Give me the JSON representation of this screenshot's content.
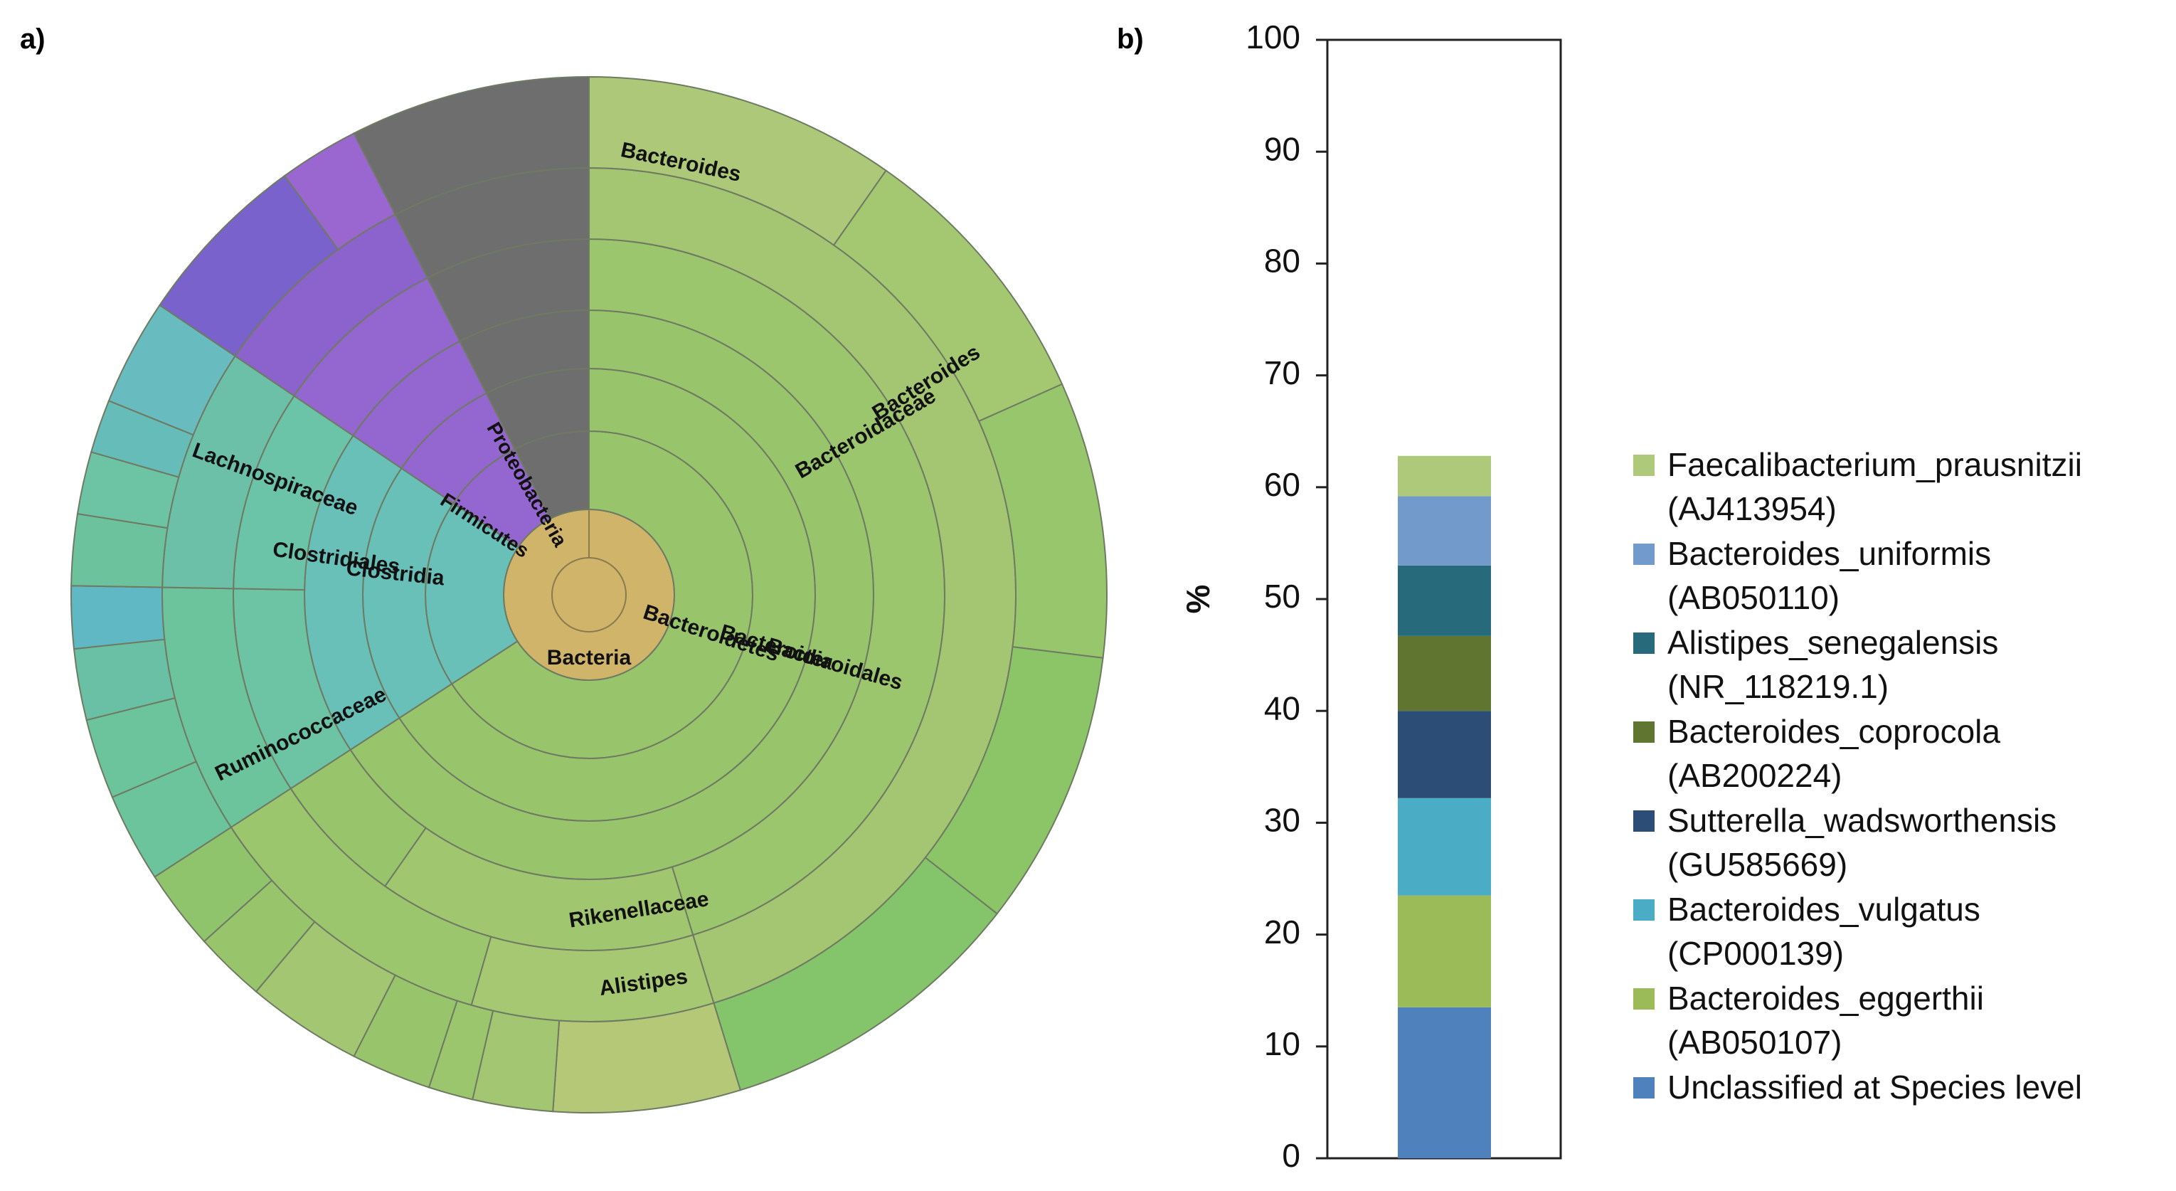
{
  "panel_labels": {
    "a": "a)",
    "b": "b)"
  },
  "chart_data": [
    {
      "type": "sunburst",
      "panel": "a)",
      "start_angle_deg": 0,
      "rings": [
        "domain",
        "phylum",
        "class",
        "order",
        "family",
        "genus",
        "species"
      ],
      "segments": [
        {
          "ring": 1,
          "start": 0,
          "end": 360,
          "color": "#cfb46a",
          "label": "Bacteria"
        },
        {
          "ring": 2,
          "start": 0,
          "end": 237,
          "color": "#98c46c",
          "label": "Bacteroidetes"
        },
        {
          "ring": 2,
          "start": 237,
          "end": 304,
          "color": "#68c0b8",
          "label": "Firmicutes"
        },
        {
          "ring": 2,
          "start": 304,
          "end": 333,
          "color": "#9466d0",
          "label": "Proteobacteria"
        },
        {
          "ring": 2,
          "start": 333,
          "end": 360,
          "color": "#6e6e6e",
          "label": ""
        },
        {
          "ring": 3,
          "start": 0,
          "end": 237,
          "color": "#98c46c",
          "label": "Bacteroidia"
        },
        {
          "ring": 3,
          "start": 237,
          "end": 304,
          "color": "#68c0b8",
          "label": "Clostridia"
        },
        {
          "ring": 3,
          "start": 304,
          "end": 333,
          "color": "#9466d0",
          "label": ""
        },
        {
          "ring": 3,
          "start": 333,
          "end": 360,
          "color": "#6e6e6e",
          "label": ""
        },
        {
          "ring": 4,
          "start": 0,
          "end": 237,
          "color": "#98c46c",
          "label": "Bacteroidales"
        },
        {
          "ring": 4,
          "start": 237,
          "end": 304,
          "color": "#68c0b8",
          "label": "Clostridiales"
        },
        {
          "ring": 4,
          "start": 304,
          "end": 333,
          "color": "#9466d0",
          "label": ""
        },
        {
          "ring": 4,
          "start": 333,
          "end": 360,
          "color": "#6e6e6e",
          "label": ""
        },
        {
          "ring": 5,
          "start": 0,
          "end": 163,
          "color": "#9cc66e",
          "label": "Bacteroidaceae"
        },
        {
          "ring": 5,
          "start": 163,
          "end": 215,
          "color": "#a0c670",
          "label": "Rikenellaceae"
        },
        {
          "ring": 5,
          "start": 215,
          "end": 237,
          "color": "#98c46c",
          "label": ""
        },
        {
          "ring": 5,
          "start": 237,
          "end": 271,
          "color": "#6cc4a4",
          "label": "Ruminococcaceae"
        },
        {
          "ring": 5,
          "start": 271,
          "end": 304,
          "color": "#6cc4a8",
          "label": "Lachnospiraceae"
        },
        {
          "ring": 5,
          "start": 304,
          "end": 333,
          "color": "#9466d0",
          "label": ""
        },
        {
          "ring": 5,
          "start": 333,
          "end": 360,
          "color": "#6e6e6e",
          "label": ""
        },
        {
          "ring": 6,
          "start": 0,
          "end": 163,
          "color": "#a4c672",
          "label": "Bacteroides"
        },
        {
          "ring": 6,
          "start": 163,
          "end": 196,
          "color": "#a6c872",
          "label": "Alistipes"
        },
        {
          "ring": 6,
          "start": 196,
          "end": 237,
          "color": "#9cc66e",
          "label": ""
        },
        {
          "ring": 6,
          "start": 237,
          "end": 271,
          "color": "#6cc49c",
          "label": ""
        },
        {
          "ring": 6,
          "start": 271,
          "end": 304,
          "color": "#6cc0a8",
          "label": ""
        },
        {
          "ring": 6,
          "start": 304,
          "end": 333,
          "color": "#8c62cc",
          "label": ""
        },
        {
          "ring": 6,
          "start": 333,
          "end": 360,
          "color": "#6e6e6e",
          "label": ""
        },
        {
          "ring": 7,
          "start": 0,
          "end": 35,
          "color": "#acc878",
          "label": "Bacteroides"
        },
        {
          "ring": 7,
          "start": 35,
          "end": 66,
          "color": "#a4c872",
          "label": ""
        },
        {
          "ring": 7,
          "start": 66,
          "end": 97,
          "color": "#98c66c",
          "label": ""
        },
        {
          "ring": 7,
          "start": 97,
          "end": 128,
          "color": "#8cc468",
          "label": ""
        },
        {
          "ring": 7,
          "start": 128,
          "end": 163,
          "color": "#84c46a",
          "label": ""
        },
        {
          "ring": 7,
          "start": 163,
          "end": 184,
          "color": "#b4c878",
          "label": ""
        },
        {
          "ring": 7,
          "start": 184,
          "end": 193,
          "color": "#a2c672",
          "label": ""
        },
        {
          "ring": 7,
          "start": 193,
          "end": 198,
          "color": "#9cc66e",
          "label": ""
        },
        {
          "ring": 7,
          "start": 198,
          "end": 207,
          "color": "#98c46c",
          "label": ""
        },
        {
          "ring": 7,
          "start": 207,
          "end": 220,
          "color": "#a2c672",
          "label": ""
        },
        {
          "ring": 7,
          "start": 220,
          "end": 228,
          "color": "#98c46c",
          "label": ""
        },
        {
          "ring": 7,
          "start": 228,
          "end": 237,
          "color": "#90c46c",
          "label": ""
        },
        {
          "ring": 7,
          "start": 237,
          "end": 247,
          "color": "#6cc49c",
          "label": ""
        },
        {
          "ring": 7,
          "start": 247,
          "end": 256,
          "color": "#6cc49c",
          "label": ""
        },
        {
          "ring": 7,
          "start": 256,
          "end": 264,
          "color": "#6ac0a4",
          "label": ""
        },
        {
          "ring": 7,
          "start": 264,
          "end": 271,
          "color": "#60b8c4",
          "label": ""
        },
        {
          "ring": 7,
          "start": 271,
          "end": 279,
          "color": "#6cc29c",
          "label": ""
        },
        {
          "ring": 7,
          "start": 279,
          "end": 286,
          "color": "#6cc4a4",
          "label": ""
        },
        {
          "ring": 7,
          "start": 286,
          "end": 292,
          "color": "#66bcb8",
          "label": ""
        },
        {
          "ring": 7,
          "start": 292,
          "end": 304,
          "color": "#68bcc0",
          "label": ""
        },
        {
          "ring": 7,
          "start": 304,
          "end": 324,
          "color": "#7a62cc",
          "label": ""
        },
        {
          "ring": 7,
          "start": 324,
          "end": 333,
          "color": "#9a66d0",
          "label": ""
        },
        {
          "ring": 7,
          "start": 333,
          "end": 360,
          "color": "#6e6e6e",
          "label": ""
        }
      ]
    },
    {
      "type": "bar",
      "stacked": true,
      "panel": "b)",
      "ylabel": "%",
      "ylim": [
        0,
        100
      ],
      "yticks": [
        0,
        10,
        20,
        30,
        40,
        50,
        60,
        70,
        80,
        90,
        100
      ],
      "series": [
        {
          "name": "Unclassified at Species level",
          "value": 13.5,
          "color": "#4f81bd"
        },
        {
          "name": "Bacteroides_eggerthii (AB050107)",
          "value": 10.0,
          "color": "#9bbb59"
        },
        {
          "name": "Bacteroides_vulgatus (CP000139)",
          "value": 8.7,
          "color": "#4bacc6"
        },
        {
          "name": "Sutterella_wadsworthensis (GU585669)",
          "value": 7.8,
          "color": "#2c4d75"
        },
        {
          "name": "Bacteroides_coprocola (AB200224)",
          "value": 6.7,
          "color": "#5f7530"
        },
        {
          "name": "Alistipes_senegalensis (NR_118219.1)",
          "value": 6.3,
          "color": "#276a7c"
        },
        {
          "name": "Bacteroides_uniformis (AB050110)",
          "value": 6.2,
          "color": "#729aca"
        },
        {
          "name": "Faecalibacterium_prausnitzii (AJ413954)",
          "value": 3.6,
          "color": "#afc97a"
        }
      ],
      "legend": [
        {
          "line1": "Faecalibacterium_prausnitzii",
          "line2": "(AJ413954)",
          "color": "#afc97a"
        },
        {
          "line1": "Bacteroides_uniformis",
          "line2": "(AB050110)",
          "color": "#729aca"
        },
        {
          "line1": "Alistipes_senegalensis",
          "line2": "(NR_118219.1)",
          "color": "#276a7c"
        },
        {
          "line1": "Bacteroides_coprocola",
          "line2": "(AB200224)",
          "color": "#5f7530"
        },
        {
          "line1": "Sutterella_wadsworthensis",
          "line2": "(GU585669)",
          "color": "#2c4d75"
        },
        {
          "line1": "Bacteroides_vulgatus",
          "line2": "(CP000139)",
          "color": "#4bacc6"
        },
        {
          "line1": "Bacteroides_eggerthii",
          "line2": "(AB050107)",
          "color": "#9bbb59"
        },
        {
          "line1": "Unclassified at Species level",
          "line2": "",
          "color": "#4f81bd"
        }
      ]
    }
  ]
}
